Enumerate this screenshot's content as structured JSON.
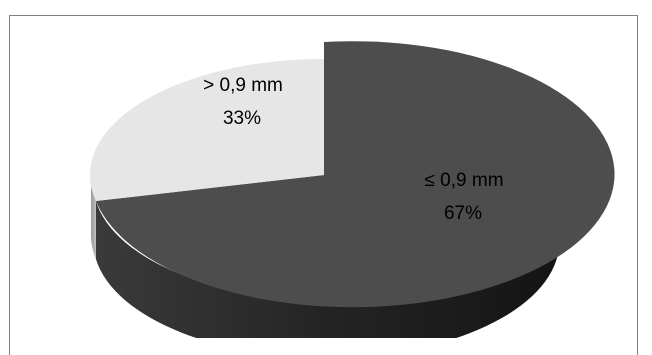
{
  "chart_data": {
    "type": "pie",
    "slices": [
      {
        "label": "≤ 0,9 mm",
        "percent_label": "67%",
        "value": 67,
        "color": "#4d4d4d"
      },
      {
        "label": "> 0,9 mm",
        "percent_label": "33%",
        "value": 33,
        "color": "#e6e6e6"
      }
    ],
    "style": "3d-tilted"
  }
}
